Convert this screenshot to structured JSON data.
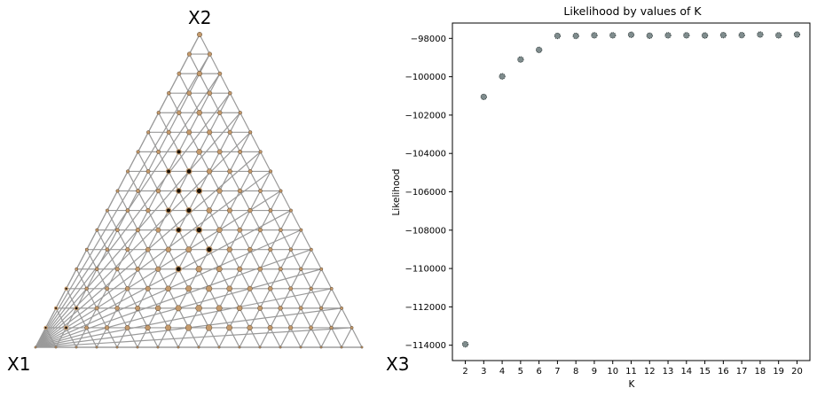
{
  "ternary": {
    "vertex_labels": {
      "left": "X1",
      "top": "X2",
      "right": "X3"
    },
    "grid_divisions": 16,
    "colors": {
      "grid": "#9a9a9a",
      "node": "#c49a6c",
      "node_dark": "#1a1209",
      "node_edge": "#3a2a1a"
    }
  },
  "chart_data": {
    "type": "scatter",
    "title": "Likelihood by values of K",
    "xlabel": "K",
    "ylabel": "Likelihood",
    "xlim": [
      1.3,
      20.7
    ],
    "ylim": [
      -114800,
      -97200
    ],
    "x_ticks": [
      "2",
      "3",
      "4",
      "5",
      "6",
      "7",
      "8",
      "9",
      "10",
      "11",
      "12",
      "13",
      "14",
      "15",
      "16",
      "17",
      "18",
      "19",
      "20"
    ],
    "y_ticks": [
      "−98000",
      "−100000",
      "−102000",
      "−104000",
      "−106000",
      "−108000",
      "−110000",
      "−112000",
      "−114000"
    ],
    "x": [
      2,
      3,
      4,
      5,
      6,
      7,
      8,
      9,
      10,
      11,
      12,
      13,
      14,
      15,
      16,
      17,
      18,
      19,
      20
    ],
    "y": [
      -113950,
      -101050,
      -99980,
      -99100,
      -98600,
      -97870,
      -97870,
      -97840,
      -97840,
      -97810,
      -97860,
      -97840,
      -97840,
      -97850,
      -97830,
      -97830,
      -97800,
      -97840,
      -97800
    ],
    "grid": false,
    "marker_color": "#7f8c8d"
  }
}
